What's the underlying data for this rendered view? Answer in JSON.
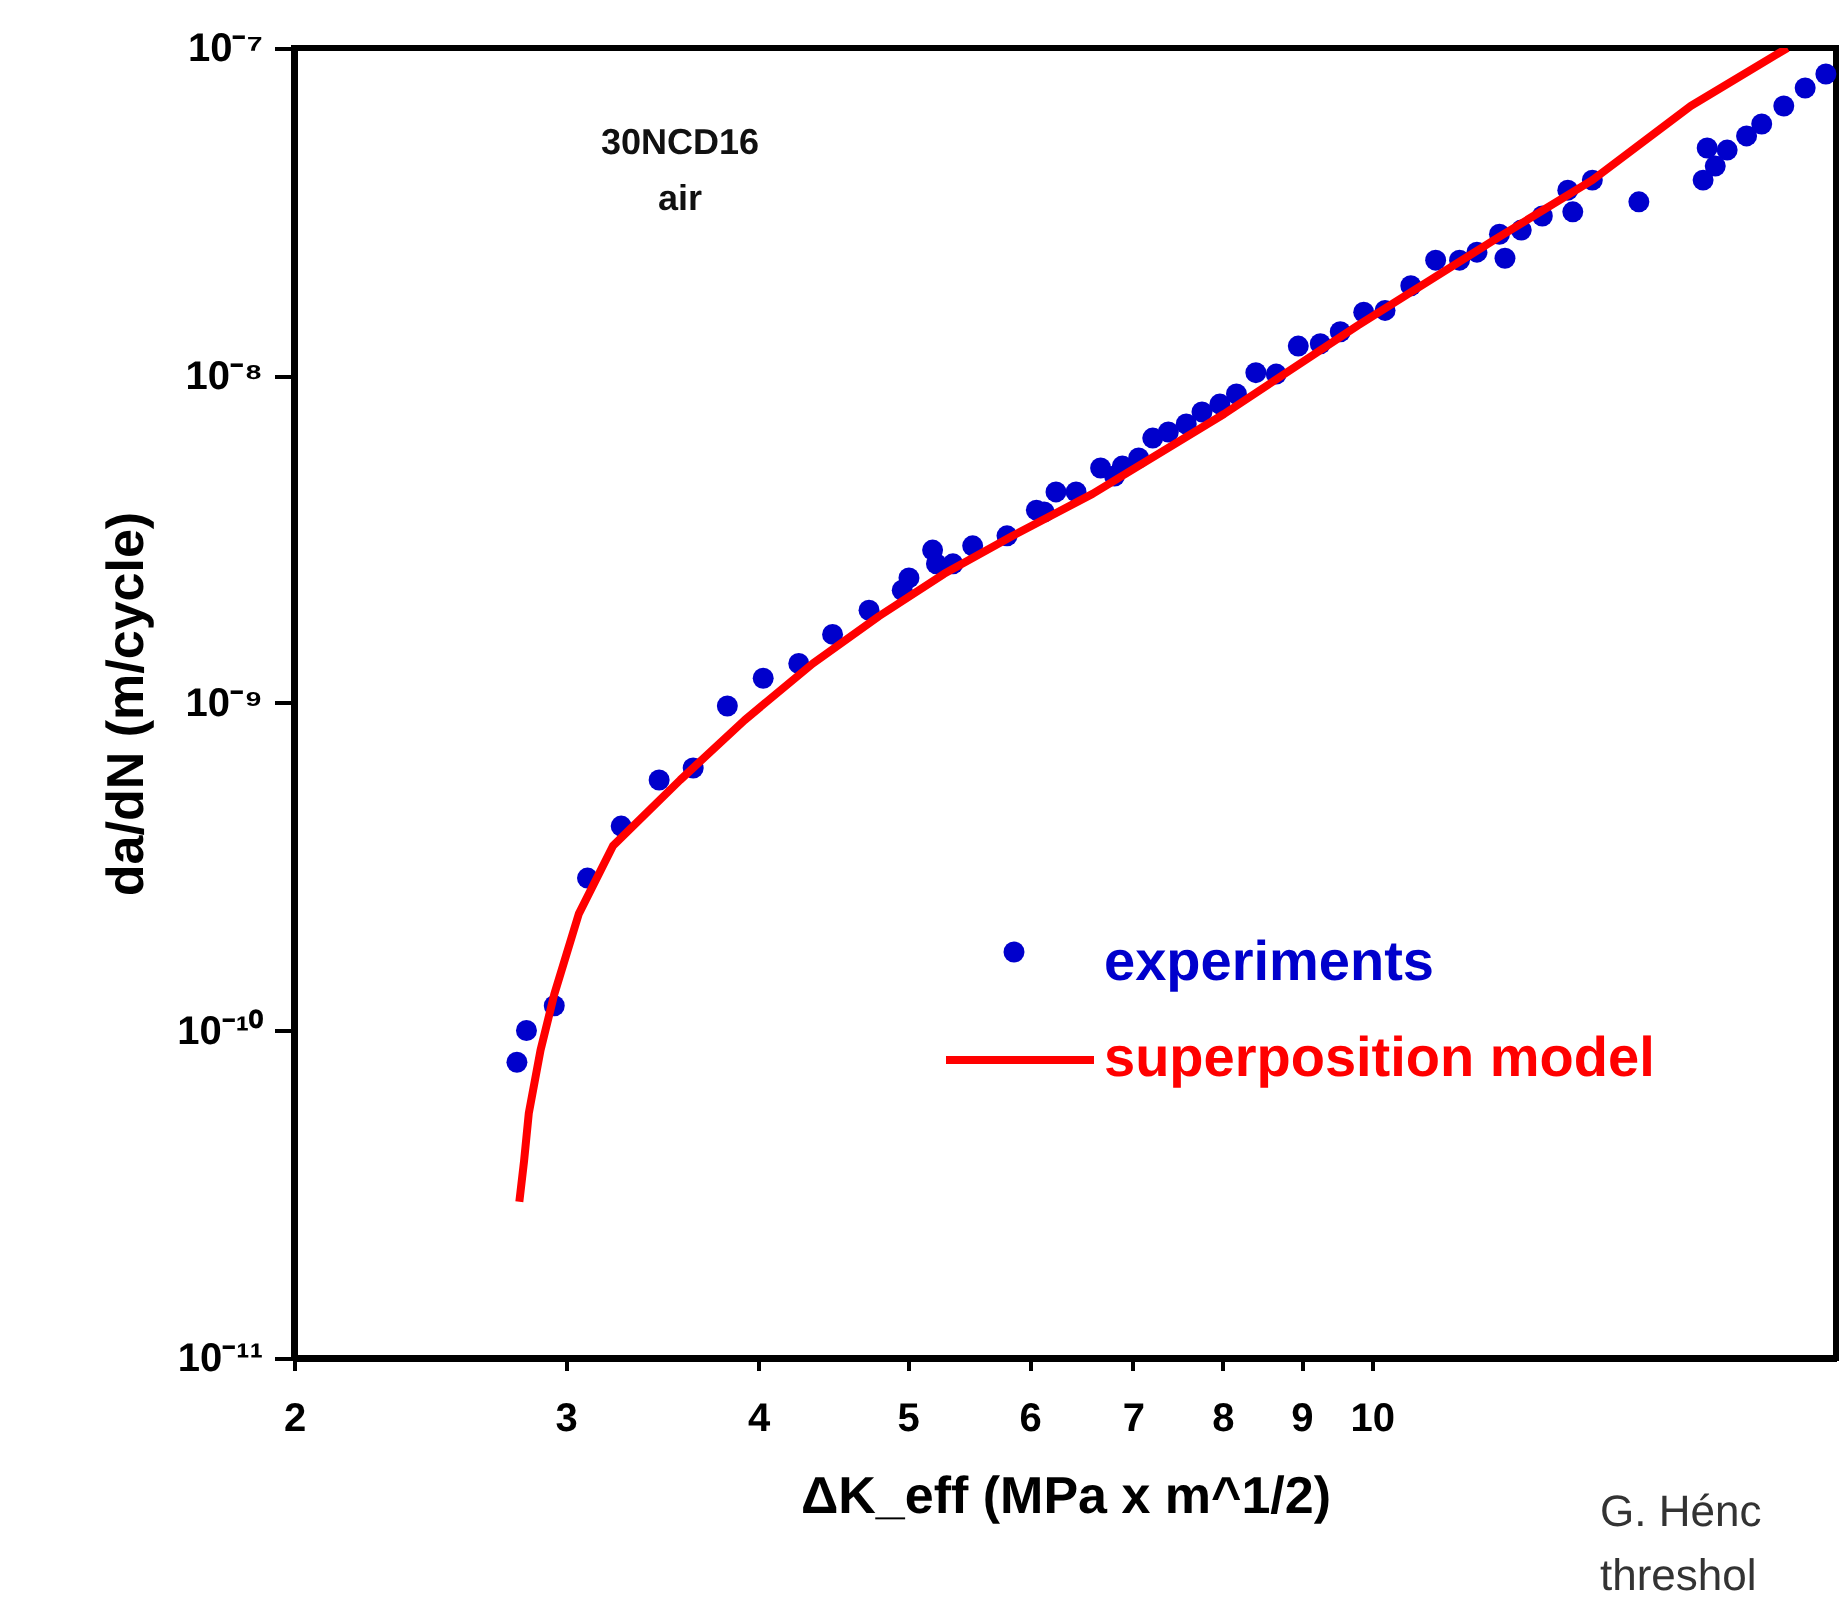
{
  "chart_data": {
    "type": "scatter",
    "xlabel": "ΔK_eff (MPa x m^1/2)",
    "ylabel": "da/dN (m/cycle)",
    "annotations": [
      "30NCD16\nair",
      "G. Hénc\nthreshol"
    ],
    "log": "xy",
    "grid": false,
    "legend": "bottom right",
    "marker": "circle",
    "xlim": [
      2,
      20
    ],
    "xticks": [
      2,
      3,
      4,
      5,
      6,
      7,
      8,
      9,
      10
    ],
    "ylim": [
      1e-11,
      1e-07
    ],
    "yticks": [
      {
        "value": 1e-11,
        "label": "10⁻¹¹"
      },
      {
        "value": 1e-10,
        "label": "10⁻¹⁰"
      },
      {
        "value": 1e-09,
        "label": "10⁻⁹"
      },
      {
        "value": 1e-08,
        "label": "10⁻⁸"
      },
      {
        "value": 1e-07,
        "label": "10⁻⁷"
      }
    ],
    "series": [
      {
        "name": "experiments",
        "color": "#0000cc",
        "x": [
          2.79,
          2.83,
          2.95,
          3.1,
          3.26,
          3.45,
          3.63,
          3.82,
          4.03,
          4.25,
          4.47,
          4.72,
          4.96,
          5.01,
          5.19,
          5.22,
          5.35,
          5.51,
          5.8,
          6.06,
          6.13,
          6.24,
          6.43,
          6.67,
          6.81,
          6.89,
          7.06,
          7.21,
          7.38,
          7.58,
          7.76,
          7.97,
          8.17,
          8.41,
          8.67,
          8.96,
          9.26,
          9.54,
          9.88,
          10.2,
          10.6,
          11,
          11.4,
          11.7,
          12.1,
          12.2,
          12.5,
          12.9,
          13.4,
          13.5,
          13.9,
          14.9,
          16.4,
          16.5,
          16.7,
          17,
          17.5,
          17.9,
          18.5,
          19.1,
          19.7
        ],
        "values": [
          8e-11,
          1e-10,
          1.19e-10,
          2.92e-10,
          4.21e-10,
          5.82e-10,
          6.33e-10,
          9.79e-10,
          1.19e-09,
          1.32e-09,
          1.62e-09,
          1.92e-09,
          2.21e-09,
          2.41e-09,
          2.93e-09,
          2.66e-09,
          2.66e-09,
          3.02e-09,
          3.24e-09,
          3.88e-09,
          3.83e-09,
          4.41e-09,
          4.41e-09,
          5.22e-09,
          4.93e-09,
          5.29e-09,
          5.6e-09,
          6.44e-09,
          6.72e-09,
          7.11e-09,
          7.74e-09,
          8.18e-09,
          8.78e-09,
          1.02e-08,
          1.01e-08,
          1.23e-08,
          1.25e-08,
          1.36e-08,
          1.56e-08,
          1.58e-08,
          1.88e-08,
          2.25e-08,
          2.25e-08,
          2.38e-08,
          2.7e-08,
          2.28e-08,
          2.78e-08,
          3.07e-08,
          3.68e-08,
          3.16e-08,
          3.95e-08,
          3.39e-08,
          3.95e-08,
          4.95e-08,
          4.36e-08,
          4.88e-08,
          5.39e-08,
          5.86e-08,
          6.65e-08,
          7.55e-08,
          8.33e-08
        ]
      },
      {
        "name": "superposition model",
        "type": "line",
        "marker": "none",
        "color": "#ff0000",
        "x": [
          2.8,
          2.82,
          2.84,
          2.89,
          2.95,
          3.06,
          3.22,
          3.56,
          3.92,
          4.34,
          4.79,
          5.28,
          5.85,
          6.59,
          8.02,
          9.79,
          12,
          13.9,
          16.1,
          18.6
        ],
        "values": [
          3e-11,
          4e-11,
          5.6e-11,
          8.7e-11,
          1.29e-10,
          2.27e-10,
          3.66e-10,
          5.82e-10,
          8.87e-10,
          1.32e-09,
          1.84e-09,
          2.48e-09,
          3.24e-09,
          4.35e-09,
          7.63e-09,
          1.42e-08,
          2.59e-08,
          3.95e-08,
          6.65e-08,
          1e-07
        ]
      }
    ]
  }
}
